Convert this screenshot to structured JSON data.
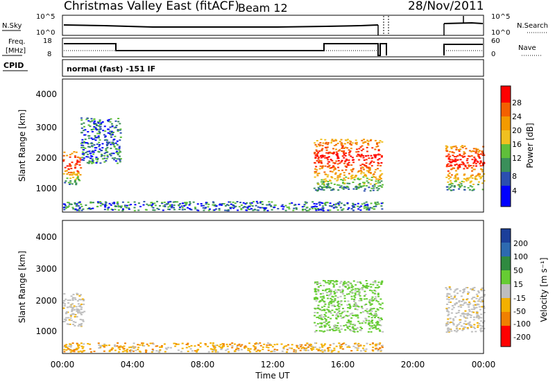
{
  "header": {
    "title": "Christmas Valley East (fitACF)",
    "beam": "Beam 12",
    "date": "28/Nov/2011"
  },
  "top_panels": {
    "nsky_label": "N.Sky",
    "nsky_ticks": [
      "10^5",
      "10^0"
    ],
    "nsearch_label": "N.Search",
    "nsearch_ticks": [
      "10^5",
      "10^0"
    ],
    "freq_label_line1": "Freq.",
    "freq_label_line2": "[MHz]",
    "freq_ticks": [
      "18",
      "8"
    ],
    "nave_label": "Nave",
    "nave_ticks": [
      "60",
      "0"
    ],
    "cpid_label": "CPID",
    "cpid_text": "normal (fast) -151 IF"
  },
  "colors": {
    "power_scale": [
      "#0000ff",
      "#2b4fb0",
      "#3a8f5a",
      "#5fbf3a",
      "#f0c020",
      "#f39a00",
      "#f36000",
      "#ff2a00",
      "#ff0000"
    ],
    "velocity_scale": [
      "#1b3f9a",
      "#2d6ab0",
      "#2f8a40",
      "#66cc33",
      "#bebebe",
      "#f3b000",
      "#f08000",
      "#ff4000",
      "#ff0000"
    ]
  },
  "chart_data": [
    {
      "type": "heatmap",
      "panel": "power",
      "ylabel": "Slant Range [km]",
      "x_ticks": [
        "00:00",
        "04:00",
        "08:00",
        "12:00",
        "16:00",
        "20:00",
        "00:00"
      ],
      "y_ticks": [
        "1000",
        "2000",
        "3000",
        "4000"
      ],
      "xlim": [
        0,
        24
      ],
      "ylim": [
        180,
        4560
      ],
      "colorbar_label": "Power [dB]",
      "colorbar_ticks": [
        "4",
        "8",
        "12",
        "16",
        "20",
        "24",
        "28"
      ],
      "data_gap_hours": [
        [
          18.2,
          21.8
        ]
      ],
      "echo_regions": [
        {
          "t": [
            0.0,
            1.0
          ],
          "range_km": [
            1100,
            2200
          ],
          "level": "high"
        },
        {
          "t": [
            1.0,
            3.3
          ],
          "range_km": [
            1800,
            3300
          ],
          "level": "low"
        },
        {
          "t": [
            0.0,
            18.2
          ],
          "range_km": [
            250,
            550
          ],
          "level": "low"
        },
        {
          "t": [
            14.3,
            18.2
          ],
          "range_km": [
            900,
            2600
          ],
          "level": "high"
        },
        {
          "t": [
            21.8,
            24.0
          ],
          "range_km": [
            900,
            2400
          ],
          "level": "high"
        }
      ]
    },
    {
      "type": "heatmap",
      "panel": "velocity",
      "ylabel": "Slant Range [km]",
      "xlabel": "Time UT",
      "x_ticks": [
        "00:00",
        "04:00",
        "08:00",
        "12:00",
        "16:00",
        "20:00",
        "00:00"
      ],
      "y_ticks": [
        "1000",
        "2000",
        "3000",
        "4000"
      ],
      "xlim": [
        0,
        24
      ],
      "ylim": [
        180,
        4560
      ],
      "colorbar_label": "Velocity [m s⁻¹]",
      "colorbar_ticks": [
        "200",
        "100",
        "50",
        "15",
        "-15",
        "-50",
        "-100",
        "-200"
      ],
      "data_gap_hours": [
        [
          18.2,
          21.8
        ]
      ],
      "echo_regions": [
        {
          "t": [
            0.0,
            1.2
          ],
          "range_km": [
            1100,
            2200
          ],
          "velocity": "near-zero"
        },
        {
          "t": [
            0.0,
            18.2
          ],
          "range_km": [
            250,
            550
          ],
          "velocity": "negative"
        },
        {
          "t": [
            14.3,
            18.2
          ],
          "range_km": [
            900,
            2600
          ],
          "velocity": "positive"
        },
        {
          "t": [
            21.8,
            24.0
          ],
          "range_km": [
            900,
            2400
          ],
          "velocity": "near-zero"
        }
      ]
    }
  ]
}
